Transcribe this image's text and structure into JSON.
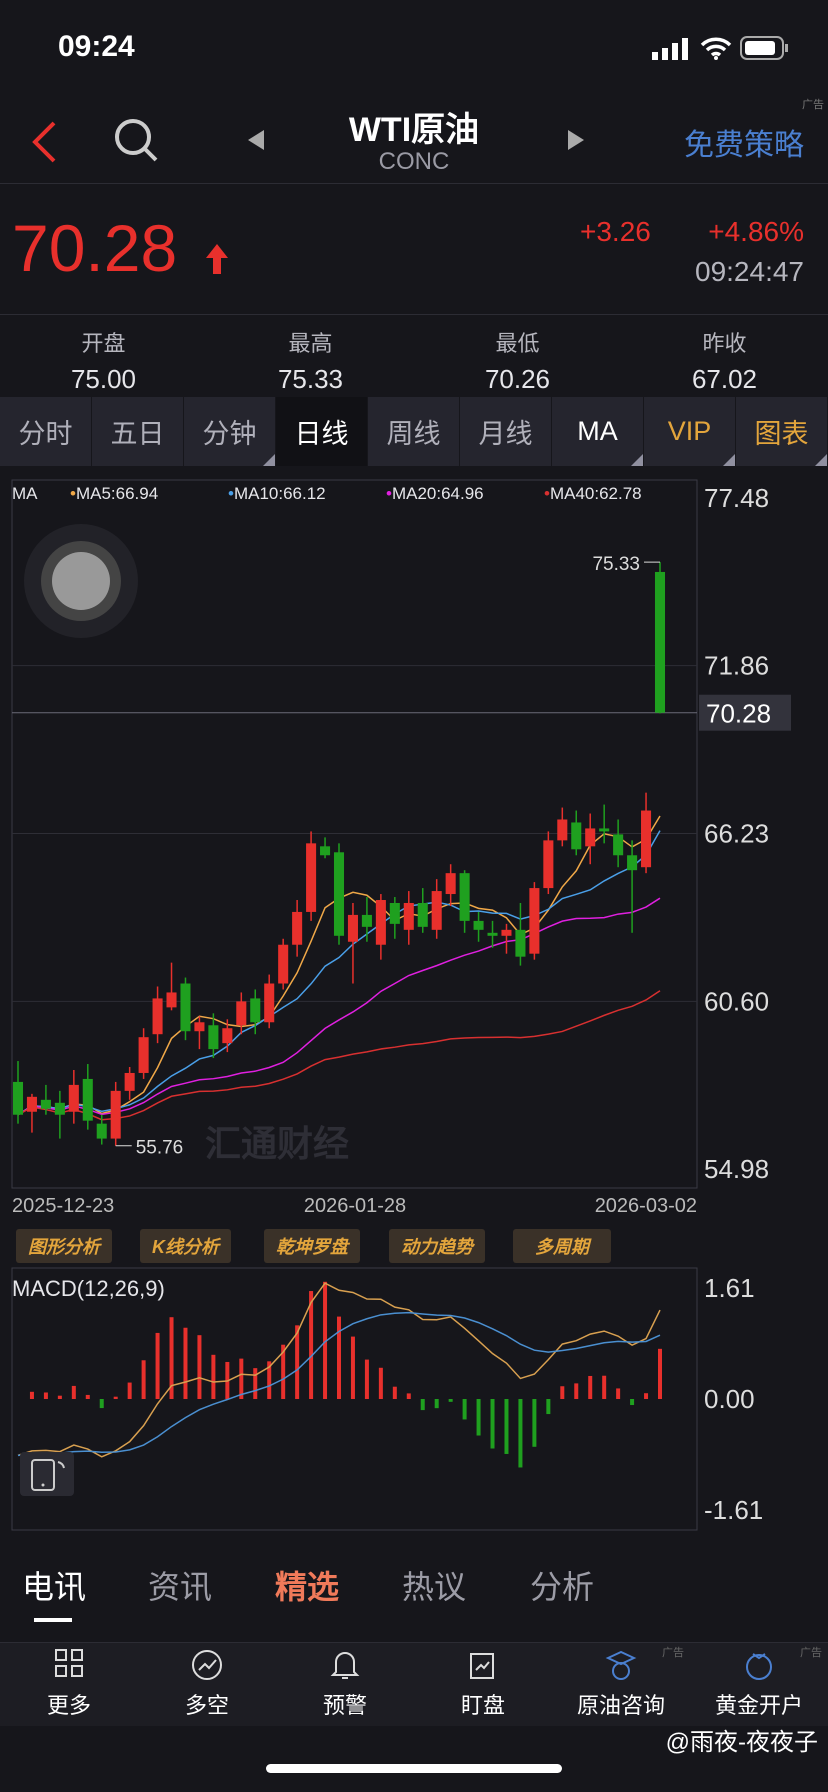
{
  "status": {
    "time": "09:24"
  },
  "nav": {
    "title": "WTI原油",
    "subtitle": "CONC",
    "strategy": "免费策略",
    "ad": "广告"
  },
  "quote": {
    "price": "70.28",
    "change": "+3.26",
    "change_pct": "+4.86%",
    "time": "09:24:47",
    "stats": [
      {
        "label": "开盘",
        "value": "75.00"
      },
      {
        "label": "最高",
        "value": "75.33"
      },
      {
        "label": "最低",
        "value": "70.26"
      },
      {
        "label": "昨收",
        "value": "67.02"
      }
    ]
  },
  "tabs": [
    "分时",
    "五日",
    "分钟",
    "日线",
    "周线",
    "月线",
    "MA",
    "VIP",
    "图表"
  ],
  "active_tab": "日线",
  "chart_data": [
    {
      "type": "candlestick",
      "legend": {
        "label": "MA",
        "items": [
          {
            "name": "MA5:66.94",
            "color": "#f0a848"
          },
          {
            "name": "MA10:66.12",
            "color": "#4a9fe8"
          },
          {
            "name": "MA20:64.96",
            "color": "#e020e0"
          },
          {
            "name": "MA40:62.78",
            "color": "#d83030"
          }
        ]
      },
      "y_ticks": [
        "77.48",
        "71.86",
        "66.23",
        "60.60",
        "54.98"
      ],
      "ylim": [
        54.98,
        77.48
      ],
      "x_ticks": [
        "2025-12-23",
        "2026-01-28",
        "2026-03-02"
      ],
      "current_price": "70.28",
      "high_label": "75.33",
      "low_label": "55.76",
      "up_color": "#e8302c",
      "down_color": "#1fa01f",
      "candles": [
        [
          57.9,
          58.6,
          56.5,
          56.8
        ],
        [
          56.9,
          57.5,
          56.2,
          57.4
        ],
        [
          57.3,
          57.8,
          56.8,
          57.0
        ],
        [
          57.2,
          57.6,
          56.0,
          56.8
        ],
        [
          56.9,
          58.3,
          56.5,
          57.8
        ],
        [
          58.0,
          58.5,
          56.3,
          56.6
        ],
        [
          56.5,
          56.8,
          55.8,
          56.0
        ],
        [
          56.0,
          57.9,
          55.76,
          57.6
        ],
        [
          57.6,
          58.4,
          57.3,
          58.2
        ],
        [
          58.2,
          59.7,
          58.0,
          59.4
        ],
        [
          59.5,
          61.1,
          59.2,
          60.7
        ],
        [
          60.4,
          61.9,
          60.3,
          60.9
        ],
        [
          61.2,
          61.4,
          59.3,
          59.6
        ],
        [
          59.6,
          60.1,
          59.0,
          59.9
        ],
        [
          59.8,
          60.2,
          58.7,
          59.0
        ],
        [
          59.2,
          60.0,
          58.9,
          59.7
        ],
        [
          59.8,
          60.9,
          59.5,
          60.6
        ],
        [
          60.7,
          61.0,
          59.5,
          59.9
        ],
        [
          59.9,
          61.5,
          59.7,
          61.2
        ],
        [
          61.2,
          62.7,
          61.0,
          62.5
        ],
        [
          62.5,
          64.0,
          62.1,
          63.6
        ],
        [
          63.6,
          66.3,
          63.3,
          65.9
        ],
        [
          65.8,
          66.1,
          65.4,
          65.5
        ],
        [
          65.6,
          65.9,
          62.5,
          62.8
        ],
        [
          62.6,
          63.9,
          61.2,
          63.5
        ],
        [
          63.5,
          64.1,
          62.6,
          63.1
        ],
        [
          62.5,
          64.2,
          62.0,
          64.0
        ],
        [
          63.9,
          64.1,
          62.7,
          63.2
        ],
        [
          63.0,
          64.3,
          62.5,
          63.9
        ],
        [
          63.9,
          64.4,
          62.9,
          63.1
        ],
        [
          63.0,
          64.7,
          62.7,
          64.3
        ],
        [
          64.2,
          65.2,
          63.8,
          64.9
        ],
        [
          64.9,
          65.0,
          62.9,
          63.3
        ],
        [
          63.3,
          63.6,
          62.6,
          63.0
        ],
        [
          62.9,
          63.3,
          62.4,
          62.8
        ],
        [
          62.8,
          63.2,
          62.2,
          63.0
        ],
        [
          63.0,
          63.9,
          61.8,
          62.1
        ],
        [
          62.2,
          64.6,
          62.0,
          64.4
        ],
        [
          64.4,
          66.3,
          64.2,
          66.0
        ],
        [
          66.0,
          67.1,
          65.8,
          66.7
        ],
        [
          66.6,
          67.0,
          65.5,
          65.7
        ],
        [
          65.8,
          66.9,
          65.2,
          66.4
        ],
        [
          66.4,
          67.2,
          65.9,
          66.3
        ],
        [
          66.2,
          66.7,
          65.1,
          65.5
        ],
        [
          65.5,
          66.0,
          62.9,
          65.0
        ],
        [
          65.1,
          67.6,
          64.9,
          67.0
        ],
        [
          75.0,
          75.33,
          70.26,
          70.28
        ]
      ]
    },
    {
      "type": "macd",
      "label": "MACD(12,26,9)",
      "y_ticks": [
        "1.61",
        "0.00",
        "-1.61"
      ],
      "ylim": [
        -1.61,
        1.61
      ]
    }
  ],
  "tools": [
    "图形分析",
    "K线分析",
    "乾坤罗盘",
    "动力趋势",
    "多周期"
  ],
  "news_tabs": [
    "电讯",
    "资讯",
    "精选",
    "热议",
    "分析"
  ],
  "bottom": [
    {
      "label": "更多",
      "icon": "grid-icon"
    },
    {
      "label": "多空",
      "icon": "trend-icon"
    },
    {
      "label": "预警",
      "icon": "bell-icon"
    },
    {
      "label": "盯盘",
      "icon": "watch-icon"
    },
    {
      "label": "原油咨询",
      "icon": "consult-icon",
      "ad": "广告"
    },
    {
      "label": "黄金开户",
      "icon": "account-icon",
      "ad": "广告"
    }
  ],
  "watermark": "汇通财经",
  "credit": "@雨夜-夜夜子"
}
